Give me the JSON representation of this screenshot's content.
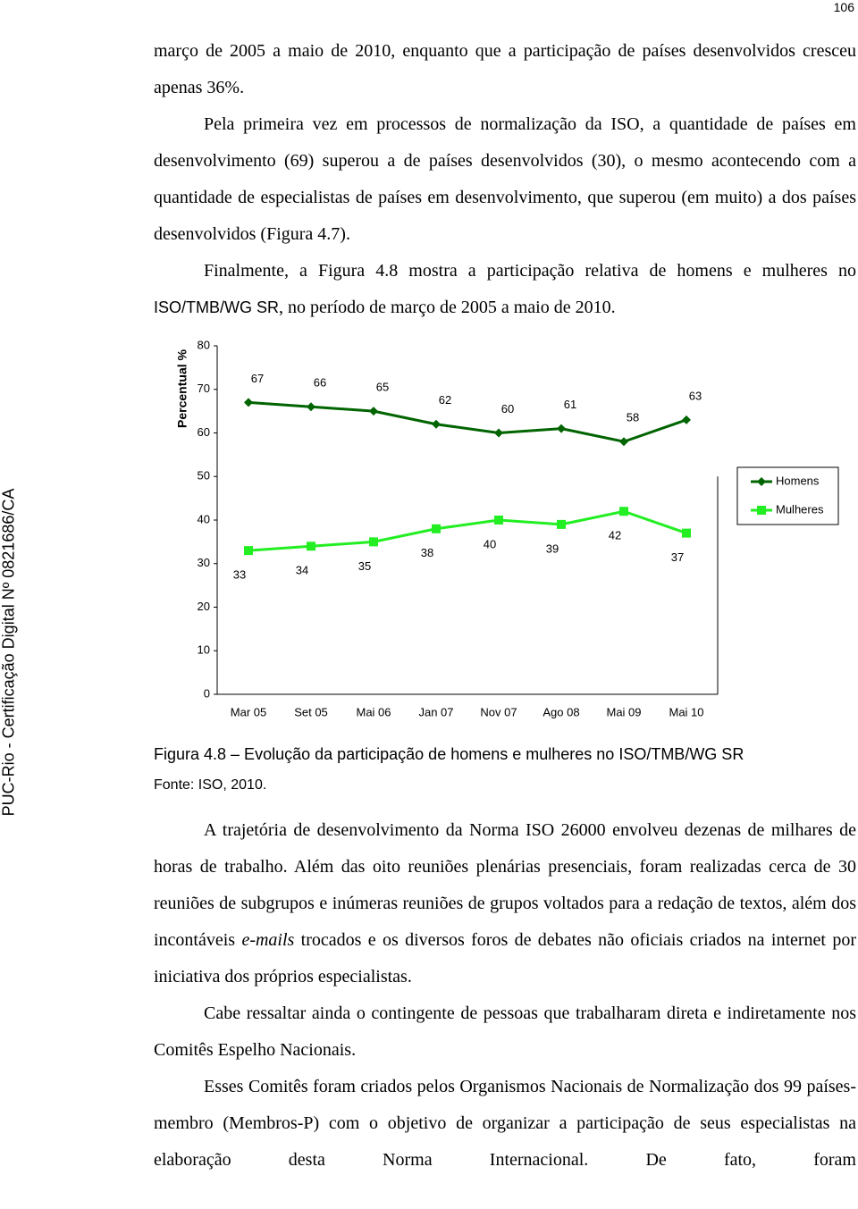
{
  "page_number": "106",
  "watermark": "PUC-Rio - Certificação Digital Nº 0821686/CA",
  "paragraphs": [
    [
      "março de 2005 a maio de 2010, enquanto que a participação de países desenvolvidos cresceu apenas 36%."
    ],
    [
      "Pela primeira vez em processos de normalização da ISO, a quantidade de países em desenvolvimento (69) superou a de países desenvolvidos (30), o mesmo acontecendo com a quantidade de especialistas de países em desenvolvimento, que superou (em muito) a dos países desenvolvidos (Figura 4.7)."
    ],
    [
      "Finalmente, a Figura 4.8 mostra a participação relativa de homens e mulheres no ",
      "ISO/TMB/WG SR",
      ", no período de março de 2005 a maio de 2010."
    ],
    [
      "A trajetória de desenvolvimento da Norma ISO 26000 envolveu dezenas de milhares de horas de trabalho. Além das oito reuniões plenárias presenciais, foram realizadas cerca de 30 reuniões de subgrupos e inúmeras reuniões de grupos voltados para a redação de textos, além dos incontáveis ",
      "e-mails",
      " trocados e os diversos foros de debates não oficiais criados na internet por iniciativa dos próprios especialistas."
    ],
    [
      "Cabe ressaltar ainda o contingente de pessoas que trabalharam direta e indiretamente nos Comitês Espelho Nacionais."
    ],
    [
      "Esses Comitês foram criados pelos Organismos Nacionais de Normalização dos 99 países-membro (Membros-P) com o objetivo de organizar a participação de seus especialistas na elaboração desta Norma Internacional. De fato, foram"
    ]
  ],
  "figure": {
    "caption": "Figura 4.8 – Evolução da participação de homens e mulheres no ISO/TMB/WG SR",
    "source": "Fonte: ISO, 2010."
  },
  "chart_data": {
    "type": "line",
    "y_label": "Percentual %",
    "categories": [
      "Mar 05",
      "Set 05",
      "Mai 06",
      "Jan 07",
      "Nov 07",
      "Ago 08",
      "Mai 09",
      "Mai 10"
    ],
    "series": [
      {
        "name": "Homens",
        "color": "#006400",
        "marker": "diamond",
        "values": [
          67,
          66,
          65,
          62,
          60,
          61,
          58,
          63
        ]
      },
      {
        "name": "Mulheres",
        "color": "#22ee22",
        "marker": "square",
        "values": [
          33,
          34,
          35,
          38,
          40,
          39,
          42,
          37
        ]
      }
    ],
    "ylim": [
      0,
      80
    ],
    "yticks": [
      0,
      10,
      20,
      30,
      40,
      50,
      60,
      70,
      80
    ],
    "legend": "right"
  }
}
